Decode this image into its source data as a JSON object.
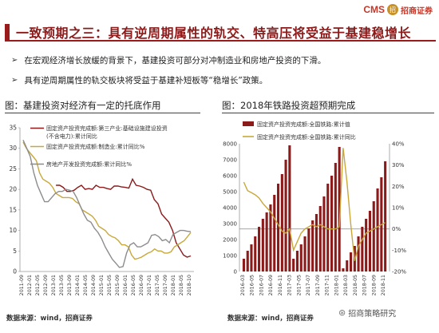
{
  "header": {
    "title": "一致预期之三：具有逆周期属性的轨交、特高压将受益于基建稳增长",
    "brand_cms": "CMS",
    "brand_logo": "招",
    "brand_name": "招商证券"
  },
  "bullets": [
    {
      "icon": "➢",
      "text": "在宏观经济增长放缓的背景下，基建投资可部分对冲制造业和房地产投资的下滑。"
    },
    {
      "icon": "➢",
      "text": "具有逆周期属性的轨交板块将受益于基建补短板等“稳增长”政策。"
    }
  ],
  "left_panel": {
    "title": "图：基建投资对经济有一定的托底作用",
    "source": "数据来源：wind，招商证券"
  },
  "right_panel": {
    "title": "图：2018年铁路投资超预期完成",
    "source": "数据来源：wind，招商证券"
  },
  "watermark": {
    "icon": "⊛",
    "text": "招商策略研究"
  },
  "colors": {
    "maroon": "#8b1a1a",
    "yellow": "#c8a83a",
    "grey": "#8c8c8c",
    "bar": "#8b1a1a"
  },
  "chart_data": [
    {
      "type": "line",
      "ylim": [
        0,
        35
      ],
      "yticks": [
        0,
        5,
        10,
        15,
        20,
        25,
        30,
        35
      ],
      "x_labels": [
        "2011-09",
        "2012-01",
        "2012-05",
        "2012-09",
        "2013-01",
        "2013-05",
        "2013-09",
        "2014-01",
        "2014-05",
        "2014-09",
        "2015-01",
        "2015-05",
        "2015-09",
        "2016-01",
        "2016-05",
        "2016-09",
        "2017-01",
        "2017-05",
        "2017-09",
        "2018-01",
        "2018-05",
        "2018-10"
      ],
      "legend": [
        "固定资产投资完成额:第三产业:基础设施建设投资(不含电力):累计同比",
        "固定资产投资完成额:制造业:累计同比%",
        "房地产开发投资完成额:累计同比%"
      ],
      "legend_lines": [
        [
          "固定资产投资完成额:第三产业:基础设施建设投资",
          "(不含电力):累计同比"
        ],
        [
          "固定资产投资完成额:制造业:累计同比%"
        ],
        [
          "房地产开发投资完成额:累计同比%"
        ]
      ],
      "series": [
        {
          "name": "固定资产投资完成额:第三产业:基础设施建设投资(不含电力):累计同比",
          "color": "#8b1a1a",
          "values": [
            null,
            null,
            null,
            null,
            null,
            null,
            null,
            null,
            null,
            21,
            21,
            20.5,
            19.5,
            19.5,
            19.8,
            20.5,
            21,
            20,
            20.2,
            20,
            21,
            20.5,
            20.5,
            20.2,
            20,
            20.8,
            20.8,
            20.6,
            20.5,
            20.3,
            22.5,
            21,
            20.8,
            20.5,
            20,
            19.8,
            17.5,
            16.5,
            14,
            13,
            12,
            10,
            7,
            5.5,
            4,
            3.5,
            3.8
          ]
        },
        {
          "name": "固定资产投资完成额:制造业:累计同比%",
          "color": "#c8a83a",
          "values": [
            31.5,
            30,
            29,
            28,
            27,
            24,
            22.5,
            22,
            21.5,
            20.5,
            19,
            18.5,
            18,
            18,
            18,
            17.8,
            17,
            16.5,
            15,
            14.5,
            14,
            13.5,
            12.5,
            11,
            10.5,
            10,
            9,
            8.5,
            8.2,
            7.5,
            6.5,
            6.5,
            6,
            4,
            3,
            3.2,
            3.5,
            4,
            4.5,
            4.8,
            5.5,
            5,
            5,
            4.5,
            4.5,
            4.8,
            6,
            6.5,
            7,
            7.5,
            8.5,
            9.5
          ]
        },
        {
          "name": "房地产开发投资完成额:累计同比%",
          "color": "#8c8c8c",
          "values": [
            32,
            30,
            28,
            24,
            21,
            19,
            17,
            17,
            18,
            19,
            19.5,
            19.5,
            20,
            19.8,
            19.5,
            18,
            16,
            14,
            12.5,
            12,
            10.5,
            9.5,
            8,
            6,
            4.5,
            3,
            2,
            1,
            1.2,
            4.5,
            6.5,
            7,
            6,
            6,
            6.5,
            7,
            8.8,
            9,
            8.5,
            7.5,
            7.8,
            7,
            9,
            9.5,
            10,
            10,
            9.8,
            9.7
          ]
        }
      ]
    },
    {
      "type": "bar+line",
      "ylim_left": [
        0,
        8000
      ],
      "yticks_left": [
        0,
        1000,
        2000,
        3000,
        4000,
        5000,
        6000,
        7000,
        8000
      ],
      "ylim_right": [
        -20,
        40
      ],
      "yticks_right": [
        "-20%",
        "-10%",
        "0%",
        "10%",
        "20%",
        "30%",
        "40%"
      ],
      "x_labels": [
        "2016-03",
        "2016-05",
        "2016-07",
        "2016-09",
        "2016-11",
        "2017-03",
        "2017-05",
        "2017-07",
        "2017-09",
        "2017-11",
        "2018-01",
        "2018-03",
        "2018-05",
        "2018-07",
        "2018-09",
        "2018-11"
      ],
      "legend": [
        "固定资产投资完成额:全国铁路:累计值",
        "固定资产投资完成额:全国铁路:累计同比"
      ],
      "series": [
        {
          "name": "固定资产投资完成额:全国铁路:累计值",
          "color": "#8b1a1a",
          "type": "bar",
          "values": [
            800,
            1300,
            1700,
            2200,
            2800,
            3300,
            3700,
            4200,
            4800,
            5500,
            6100,
            7000,
            7900,
            800,
            1300,
            1700,
            2200,
            2700,
            3200,
            3600,
            4100,
            4700,
            5500,
            6000,
            6800,
            7800,
            200,
            700,
            1200,
            1600,
            2200,
            2800,
            3300,
            3800,
            4400,
            5200,
            5900,
            6900
          ]
        },
        {
          "name": "固定资产投资完成额:全国铁路:累计同比",
          "color": "#c8a83a",
          "type": "line",
          "values": [
            22,
            18,
            17,
            16,
            14.5,
            12,
            10,
            8,
            5,
            2,
            -1,
            -2,
            0,
            -10,
            -6,
            -2,
            0,
            1,
            2,
            1,
            2,
            1,
            0,
            0,
            0,
            1,
            38,
            22,
            2,
            -15,
            -8,
            -5,
            -2,
            -1,
            0,
            1,
            2,
            3
          ]
        }
      ]
    }
  ]
}
